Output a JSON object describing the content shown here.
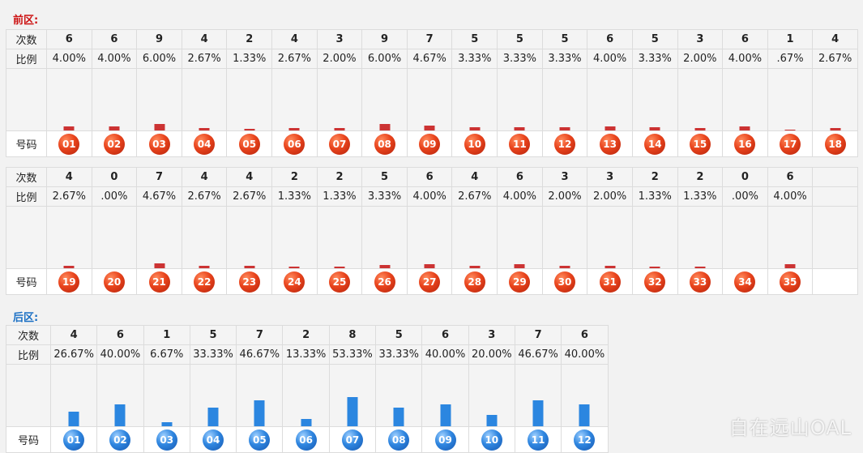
{
  "front": {
    "title": "前区:",
    "row_labels": {
      "count": "次数",
      "ratio": "比例",
      "number": "号码"
    },
    "colors": {
      "title": "#cc1111",
      "bar": "#cc3333"
    }
  },
  "back": {
    "title": "后区:",
    "row_labels": {
      "count": "次数",
      "ratio": "比例",
      "number": "号码"
    },
    "colors": {
      "title": "#1a6fc4",
      "bar": "#2b86e0"
    }
  },
  "watermark": "自在远山OAL",
  "chart_data": [
    {
      "type": "bar",
      "categories": [
        "01",
        "02",
        "03",
        "04",
        "05",
        "06",
        "07",
        "08",
        "09",
        "10",
        "11",
        "12",
        "13",
        "14",
        "15",
        "16",
        "17",
        "18"
      ],
      "values": [
        6,
        6,
        9,
        4,
        2,
        4,
        3,
        9,
        7,
        5,
        5,
        5,
        6,
        5,
        3,
        6,
        1,
        4
      ],
      "ratios": [
        "4.00%",
        "4.00%",
        "6.00%",
        "2.67%",
        "1.33%",
        "2.67%",
        "2.00%",
        "6.00%",
        "4.67%",
        "3.33%",
        "3.33%",
        "3.33%",
        "4.00%",
        "3.33%",
        "2.00%",
        "4.00%",
        ".67%",
        "2.67%"
      ],
      "ylim": [
        0,
        60
      ]
    },
    {
      "type": "bar",
      "categories": [
        "19",
        "20",
        "21",
        "22",
        "23",
        "24",
        "25",
        "26",
        "27",
        "28",
        "29",
        "30",
        "31",
        "32",
        "33",
        "34",
        "35"
      ],
      "values": [
        4,
        0,
        7,
        4,
        4,
        2,
        2,
        5,
        6,
        4,
        6,
        3,
        3,
        2,
        2,
        0,
        6
      ],
      "ratios": [
        "2.67%",
        ".00%",
        "4.67%",
        "2.67%",
        "2.67%",
        "1.33%",
        "1.33%",
        "3.33%",
        "4.00%",
        "2.67%",
        "4.00%",
        "2.00%",
        "2.00%",
        "1.33%",
        "1.33%",
        ".00%",
        "4.00%"
      ],
      "ylim": [
        0,
        60
      ]
    },
    {
      "type": "bar",
      "categories": [
        "01",
        "02",
        "03",
        "04",
        "05",
        "06",
        "07",
        "08",
        "09",
        "10",
        "11",
        "12"
      ],
      "values": [
        4,
        6,
        1,
        5,
        7,
        2,
        8,
        5,
        6,
        3,
        7,
        6
      ],
      "ratios": [
        "26.67%",
        "40.00%",
        "6.67%",
        "33.33%",
        "46.67%",
        "13.33%",
        "53.33%",
        "33.33%",
        "40.00%",
        "20.00%",
        "46.67%",
        "40.00%"
      ],
      "ylim": [
        0,
        15
      ]
    }
  ]
}
